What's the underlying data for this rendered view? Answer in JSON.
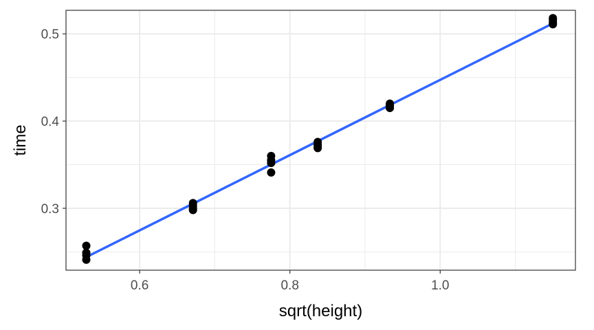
{
  "chart_data": {
    "type": "scatter",
    "xlabel": "sqrt(height)",
    "ylabel": "time",
    "xlim": [
      0.502,
      1.18
    ],
    "ylim": [
      0.229,
      0.527
    ],
    "x_ticks": [
      0.6,
      0.8,
      1.0
    ],
    "x_tick_labels": [
      "0.6",
      "0.8",
      "1.0"
    ],
    "y_ticks": [
      0.3,
      0.4,
      0.5
    ],
    "y_tick_labels": [
      "0.3",
      "0.4",
      "0.5"
    ],
    "grid": true,
    "points": [
      {
        "x": 0.529,
        "y": 0.257
      },
      {
        "x": 0.529,
        "y": 0.249
      },
      {
        "x": 0.529,
        "y": 0.246
      },
      {
        "x": 0.529,
        "y": 0.241
      },
      {
        "x": 0.671,
        "y": 0.306
      },
      {
        "x": 0.671,
        "y": 0.303
      },
      {
        "x": 0.671,
        "y": 0.3
      },
      {
        "x": 0.671,
        "y": 0.298
      },
      {
        "x": 0.775,
        "y": 0.36
      },
      {
        "x": 0.775,
        "y": 0.355
      },
      {
        "x": 0.775,
        "y": 0.352
      },
      {
        "x": 0.775,
        "y": 0.341
      },
      {
        "x": 0.837,
        "y": 0.376
      },
      {
        "x": 0.837,
        "y": 0.373
      },
      {
        "x": 0.837,
        "y": 0.371
      },
      {
        "x": 0.837,
        "y": 0.369
      },
      {
        "x": 0.933,
        "y": 0.42
      },
      {
        "x": 0.933,
        "y": 0.418
      },
      {
        "x": 0.933,
        "y": 0.416
      },
      {
        "x": 0.933,
        "y": 0.415
      },
      {
        "x": 1.15,
        "y": 0.518
      },
      {
        "x": 1.15,
        "y": 0.516
      },
      {
        "x": 1.15,
        "y": 0.513
      },
      {
        "x": 1.15,
        "y": 0.511
      }
    ],
    "fit_line": {
      "x": [
        0.529,
        1.15
      ],
      "y": [
        0.244,
        0.512
      ]
    },
    "colors": {
      "points": "#000000",
      "fit_line": "#3366ff",
      "grid": "#ebebeb",
      "panel_border": "#333333"
    }
  }
}
